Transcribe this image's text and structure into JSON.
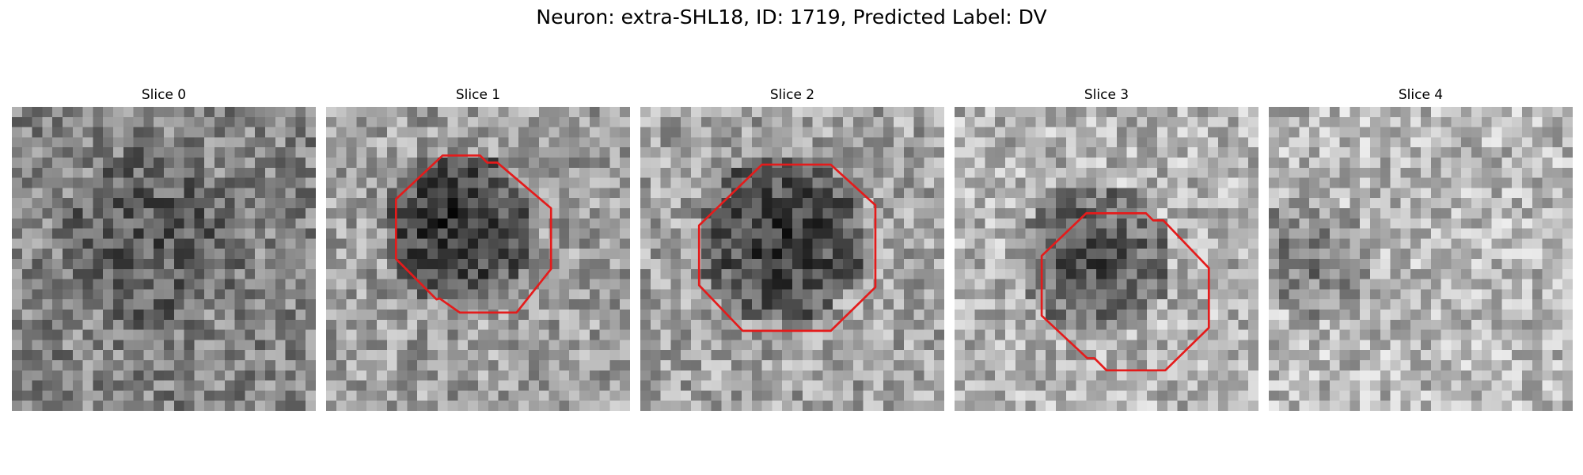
{
  "figure": {
    "title": "Neuron: extra-SHL18, ID: 1719, Predicted Label: DV",
    "contour_color": "#e41b1b"
  },
  "panels": [
    {
      "title": "Slice 0",
      "has_contour": false
    },
    {
      "title": "Slice 1",
      "has_contour": true
    },
    {
      "title": "Slice 2",
      "has_contour": true
    },
    {
      "title": "Slice 3",
      "has_contour": true
    },
    {
      "title": "Slice 4",
      "has_contour": false
    }
  ]
}
